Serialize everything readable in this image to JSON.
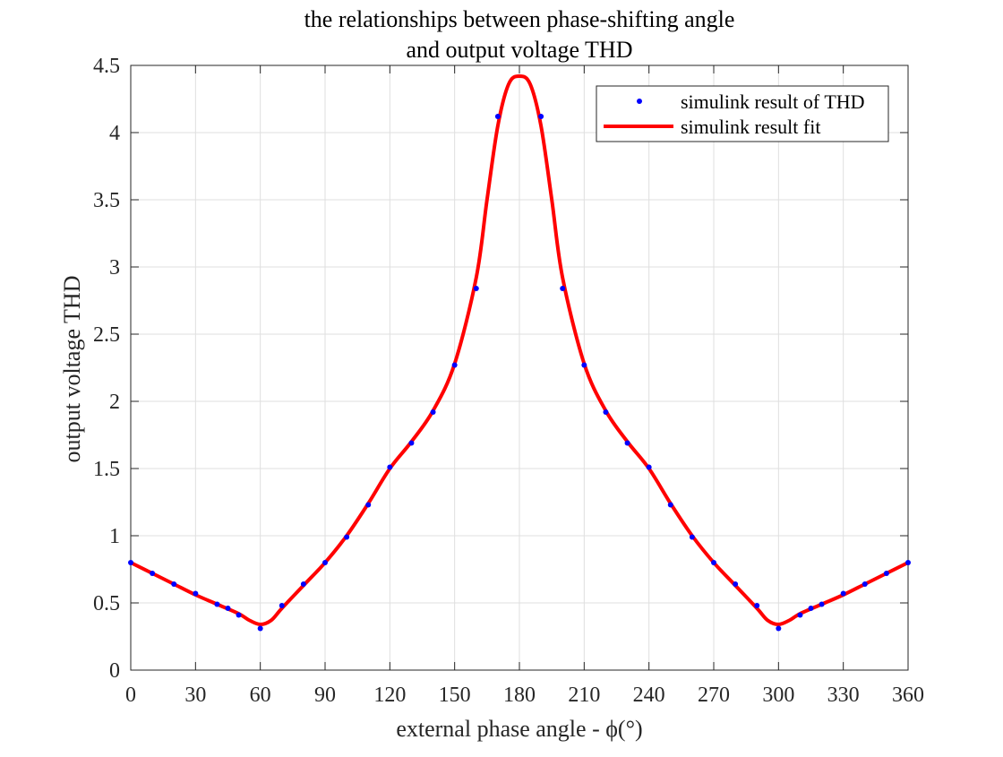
{
  "chart_data": {
    "type": "line",
    "title": [
      "the relationships between phase-shifting angle",
      "and output voltage THD"
    ],
    "xlabel": "external phase angle - ϕ(°)",
    "ylabel": "output voltage THD",
    "xlim": [
      0,
      360
    ],
    "ylim": [
      0,
      4.5
    ],
    "xticks": [
      0,
      30,
      60,
      90,
      120,
      150,
      180,
      210,
      240,
      270,
      300,
      330,
      360
    ],
    "yticks": [
      0,
      0.5,
      1,
      1.5,
      2,
      2.5,
      3,
      3.5,
      4,
      4.5
    ],
    "xtick_labels": [
      "0",
      "30",
      "60",
      "90",
      "120",
      "150",
      "180",
      "210",
      "240",
      "270",
      "300",
      "330",
      "360"
    ],
    "ytick_labels": [
      "0",
      "0.5",
      "1",
      "1.5",
      "2",
      "2.5",
      "3",
      "3.5",
      "4",
      "4.5"
    ],
    "grid": true,
    "legend_position": "top-right",
    "series": [
      {
        "name": "simulink result of THD",
        "style": "markers",
        "color": "#0000ff",
        "x": [
          0,
          10,
          20,
          30,
          40,
          45,
          50,
          60,
          70,
          80,
          90,
          100,
          110,
          120,
          130,
          140,
          150,
          160,
          170,
          190,
          200,
          210,
          220,
          230,
          240,
          250,
          260,
          270,
          280,
          290,
          300,
          310,
          315,
          320,
          330,
          340,
          350,
          360
        ],
        "y": [
          0.8,
          0.72,
          0.64,
          0.57,
          0.49,
          0.46,
          0.41,
          0.31,
          0.48,
          0.64,
          0.8,
          0.99,
          1.23,
          1.51,
          1.69,
          1.92,
          2.27,
          2.84,
          4.12,
          4.12,
          2.84,
          2.27,
          1.92,
          1.69,
          1.51,
          1.23,
          0.99,
          0.8,
          0.64,
          0.48,
          0.31,
          0.41,
          0.46,
          0.49,
          0.57,
          0.64,
          0.72,
          0.8
        ]
      },
      {
        "name": "simulink result fit",
        "style": "line",
        "color": "#ff0000",
        "x": [
          0,
          10,
          20,
          30,
          40,
          50,
          55,
          60,
          65,
          70,
          80,
          90,
          100,
          110,
          120,
          130,
          140,
          150,
          160,
          165,
          170,
          175,
          180,
          185,
          190,
          195,
          200,
          210,
          220,
          230,
          240,
          250,
          260,
          270,
          280,
          290,
          295,
          300,
          305,
          310,
          320,
          330,
          340,
          350,
          360
        ],
        "y": [
          0.8,
          0.72,
          0.64,
          0.56,
          0.49,
          0.42,
          0.37,
          0.34,
          0.37,
          0.46,
          0.63,
          0.8,
          1.0,
          1.24,
          1.5,
          1.7,
          1.93,
          2.28,
          2.92,
          3.5,
          4.05,
          4.36,
          4.42,
          4.36,
          4.05,
          3.5,
          2.92,
          2.28,
          1.93,
          1.7,
          1.5,
          1.24,
          1.0,
          0.8,
          0.63,
          0.46,
          0.37,
          0.34,
          0.37,
          0.42,
          0.49,
          0.56,
          0.64,
          0.72,
          0.8
        ]
      }
    ]
  }
}
